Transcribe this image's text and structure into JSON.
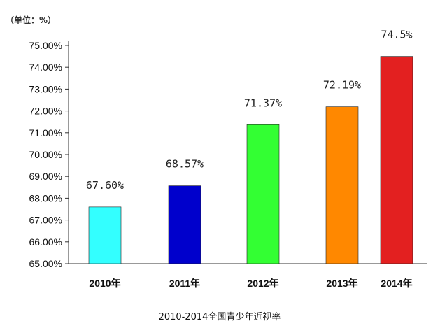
{
  "chart_data": {
    "type": "bar",
    "unit_label": "（单位：%）",
    "caption": "2010-2014全国青少年近视率",
    "categories": [
      "2010年",
      "2011年",
      "2012年",
      "2013年",
      "2014年"
    ],
    "values": [
      67.6,
      68.57,
      71.37,
      72.19,
      74.5
    ],
    "data_labels": [
      "67.60%",
      "68.57%",
      "71.37%",
      "72.19%",
      "74.5%"
    ],
    "colors": [
      "#33ffff",
      "#0000cc",
      "#33ff33",
      "#ff8800",
      "#e32020"
    ],
    "ytick_labels": [
      "65.00%",
      "66.00%",
      "67.00%",
      "68.00%",
      "69.00%",
      "70.00%",
      "71.00%",
      "72.00%",
      "73.00%",
      "74.00%",
      "75.00%"
    ],
    "ylim": [
      65,
      75
    ],
    "grid": false,
    "legend": "none"
  }
}
